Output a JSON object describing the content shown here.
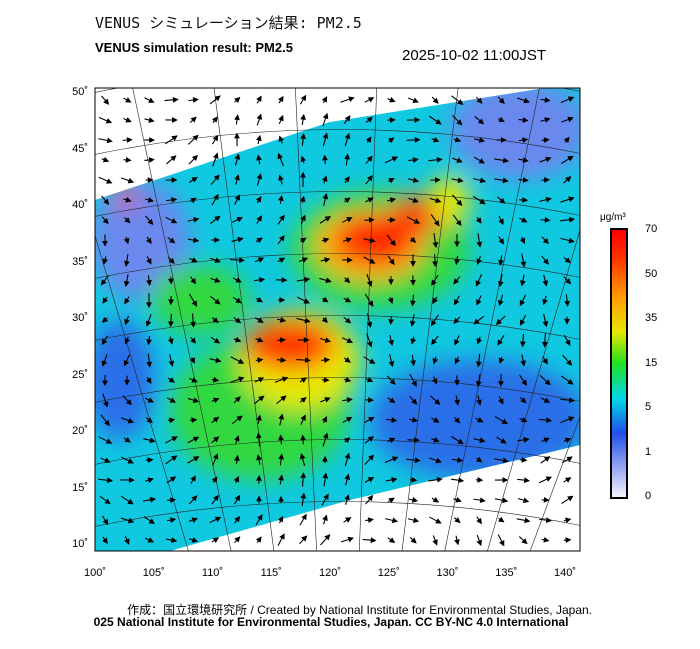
{
  "header": {
    "title_ja": "VENUS シミュレーション結果: PM2.5",
    "title_en": "VENUS simulation result: PM2.5",
    "timestamp": "2025-10-02 11:00JST"
  },
  "map": {
    "lat_labels": [
      "50˚",
      "45˚",
      "40˚",
      "35˚",
      "30˚",
      "25˚",
      "20˚",
      "15˚",
      "10˚"
    ],
    "lon_labels": [
      "100˚",
      "105˚",
      "110˚",
      "115˚",
      "120˚",
      "125˚",
      "130˚",
      "135˚",
      "140˚"
    ]
  },
  "colorbar": {
    "unit": "μg/m³",
    "ticks": [
      "70",
      "50",
      "35",
      "15",
      "5",
      "1",
      "0"
    ],
    "colors": [
      "#ff0000",
      "#ff9a00",
      "#e8e800",
      "#20e020",
      "#00d8e8",
      "#2050e8",
      "#f4f4ff"
    ]
  },
  "footer": {
    "credit": "作成：国立環境研究所 / Created by National Institute for Environmental Studies, Japan.",
    "license": "2025 National Institute for Environmental Studies, Japan. CC BY-NC 4.0 International"
  }
}
